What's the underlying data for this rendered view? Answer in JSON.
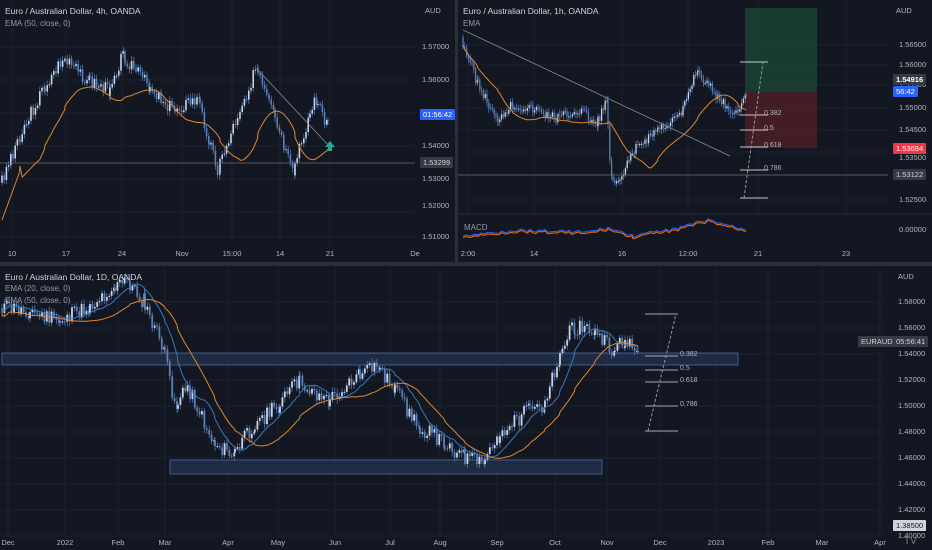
{
  "colors": {
    "background": "#131722",
    "grid": "#1e222d",
    "candle": "#5b7fb8",
    "ema": "#e0872f",
    "ema20": "#3a79b8",
    "macd": "#2962ff",
    "signal": "#ff6d00",
    "highlight_blue": "#2962ff",
    "highlight_red": "#f23645",
    "zone": "#2a3b5e"
  },
  "top_left": {
    "title": "Euro / Australian Dollar, 4h, OANDA",
    "indicator": "EMA (50, close, 0)",
    "unit": "AUD",
    "y_labels": [
      "1.57000",
      "1.56000",
      "1.55000",
      "1.54000",
      "1.53000",
      "1.52000",
      "1.51000"
    ],
    "x_labels": [
      "10",
      "17",
      "24",
      "Nov",
      "15:00",
      "14",
      "21",
      "De"
    ],
    "countdown_tag": "01:56:42",
    "level_tag": "1.53299"
  },
  "top_right": {
    "title": "Euro / Australian Dollar, 1h, OANDA",
    "indicator": "EMA",
    "macd_label": "MACD",
    "unit": "AUD",
    "y_labels": [
      "1.56500",
      "1.56000",
      "1.55500",
      "1.55000",
      "1.54500",
      "1.54000",
      "1.53500",
      "1.53000",
      "1.52500"
    ],
    "macd_y_label": "0.00000",
    "x_labels": [
      "2:00",
      "14",
      "16",
      "12:00",
      "21",
      "23"
    ],
    "price_tag": "1.54916",
    "countdown_tag": "56:42",
    "stop_tag": "1.53694",
    "level_tag": "1.53122",
    "fib_levels": [
      "0.382",
      "0.5",
      "0.618",
      "0.786"
    ]
  },
  "bottom": {
    "title": "Euro / Australian Dollar, 1D, OANDA",
    "indicator_1": "EMA (20, close, 0)",
    "indicator_2": "EMA (50, close, 0)",
    "unit": "AUD",
    "y_labels": [
      "1.58000",
      "1.56000",
      "1.54000",
      "1.52000",
      "1.50000",
      "1.48000",
      "1.46000",
      "1.44000",
      "1.42000",
      "1.40000"
    ],
    "bottom_tag": "1.38500",
    "symbol_tag": "EURAUD",
    "countdown_tag": "05:56:41",
    "x_labels": [
      "Dec",
      "2022",
      "Feb",
      "Mar",
      "Apr",
      "May",
      "Jun",
      "Jul",
      "Aug",
      "Sep",
      "Oct",
      "Nov",
      "Dec",
      "2023",
      "Feb",
      "Mar",
      "Apr"
    ],
    "fib_levels": [
      "0.382",
      "0.5",
      "0.618",
      "0.786"
    ]
  },
  "watermark": "TV"
}
